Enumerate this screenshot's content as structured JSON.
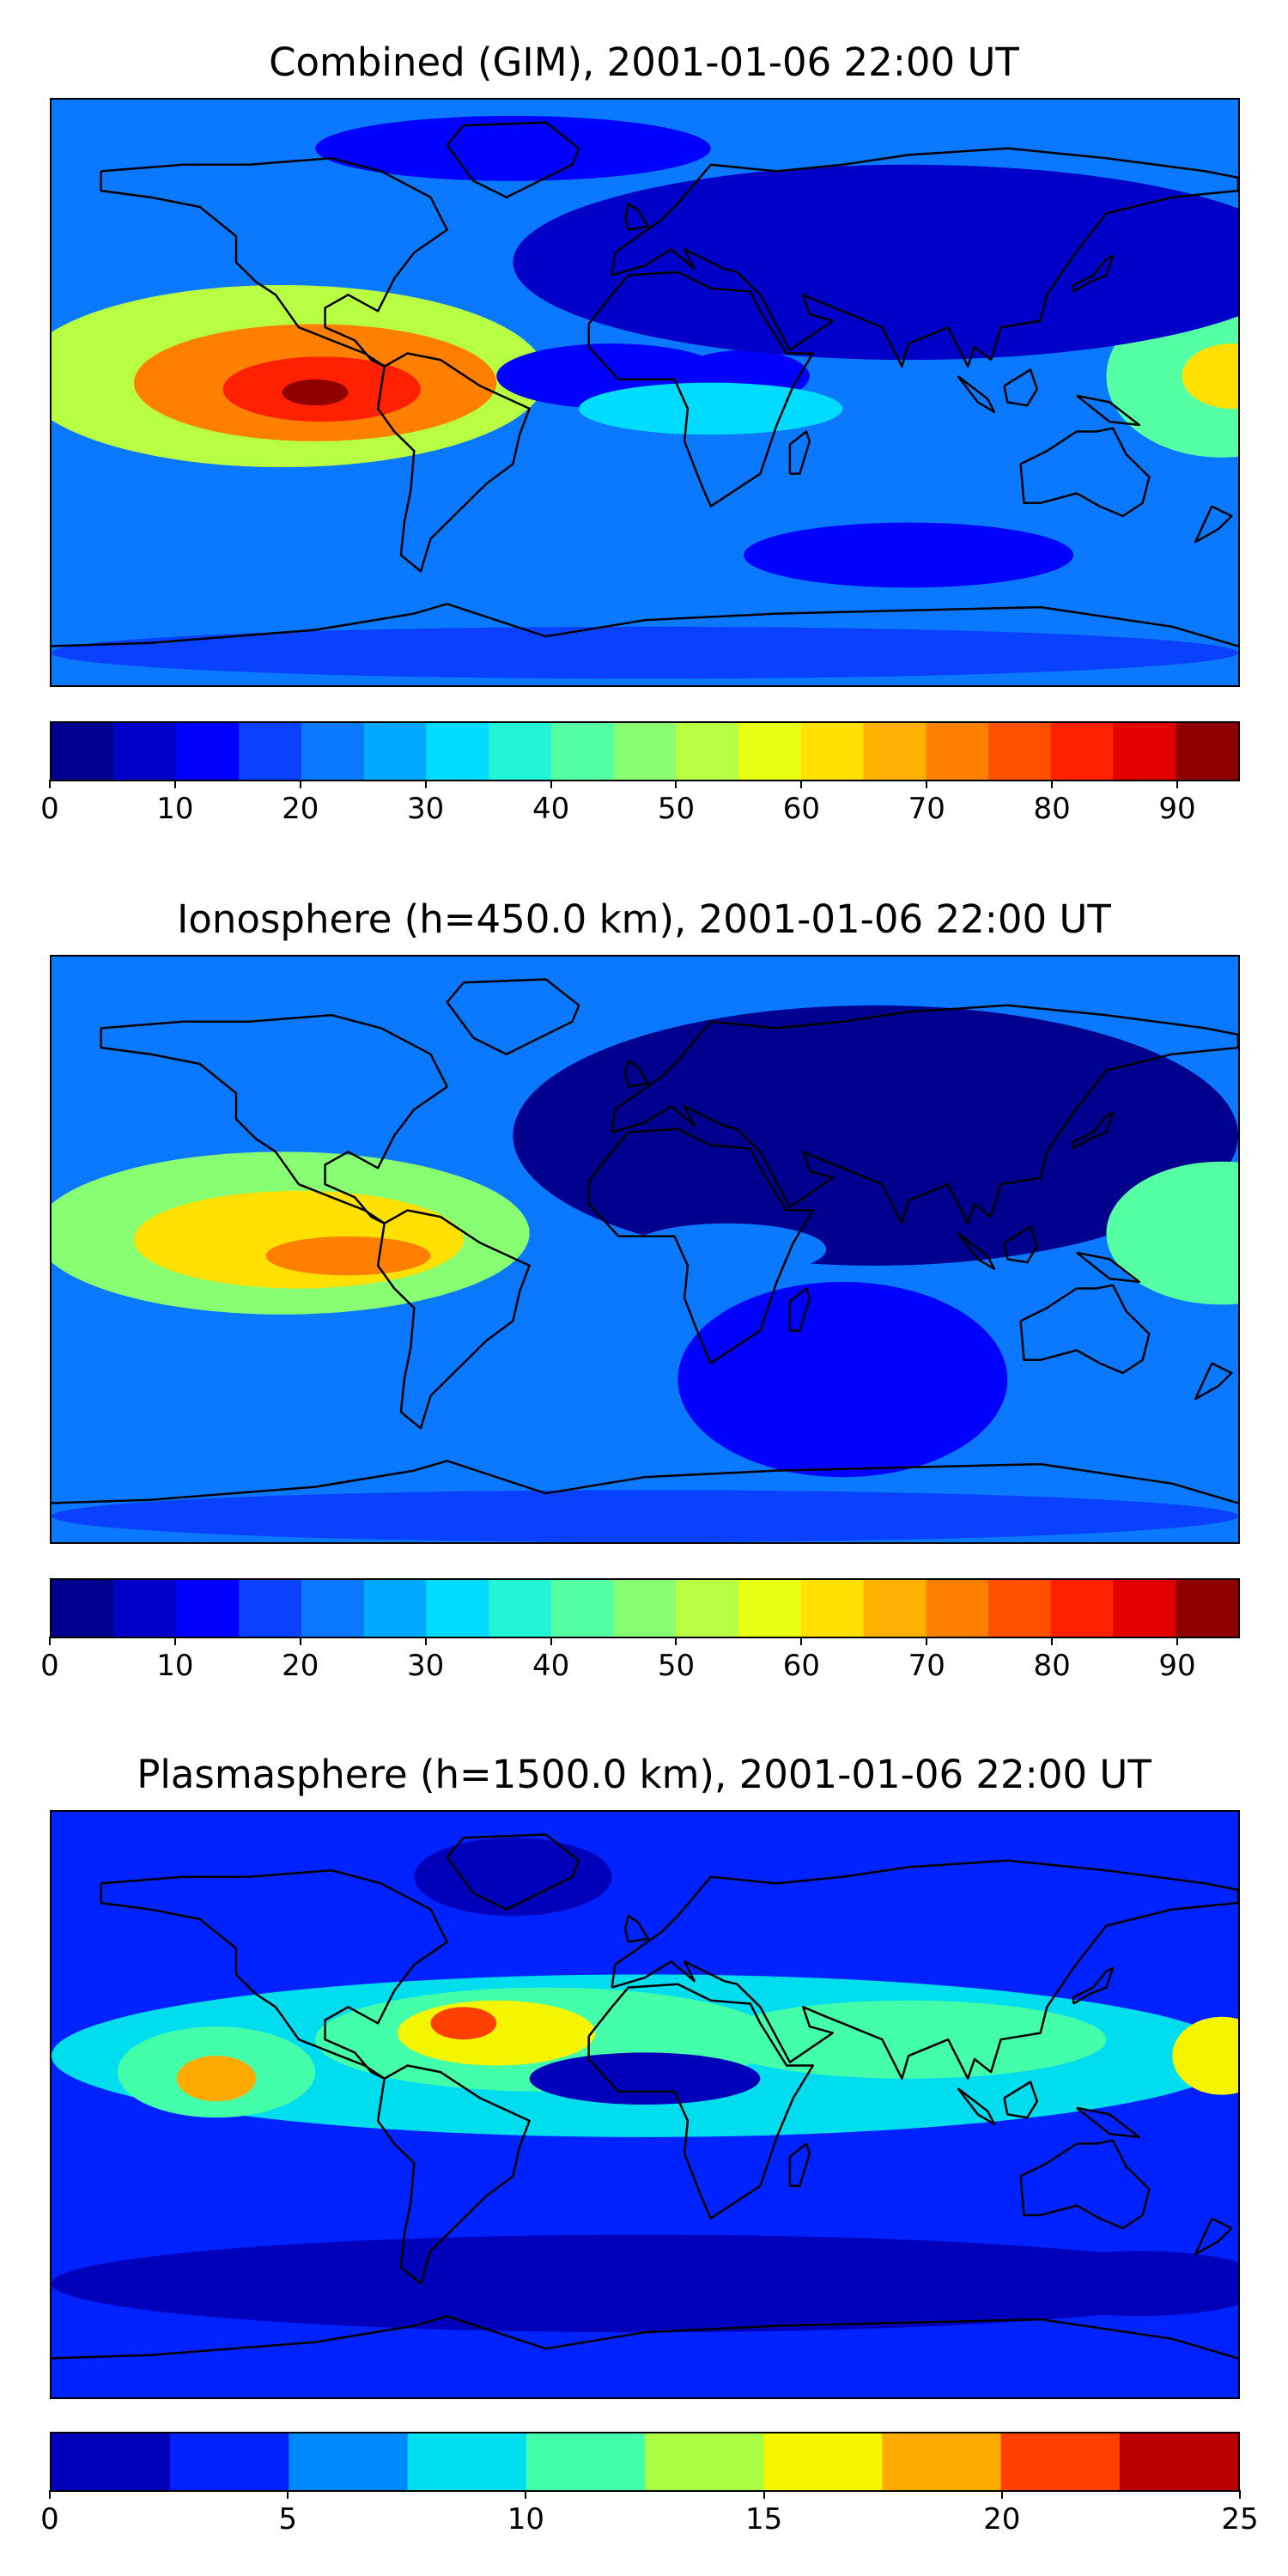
{
  "chart_data": [
    {
      "type": "heatmap",
      "title": "Combined (GIM), 2001-01-06 22:00 UT",
      "colorbar": {
        "levels": [
          0,
          5,
          10,
          15,
          20,
          25,
          30,
          35,
          40,
          45,
          50,
          55,
          60,
          65,
          70,
          75,
          80,
          85,
          90,
          95
        ],
        "ticks": [
          0,
          10,
          20,
          30,
          40,
          50,
          60,
          70,
          80,
          90
        ],
        "colors": [
          "#00008f",
          "#0000c8",
          "#0000ff",
          "#0a40ff",
          "#0a78ff",
          "#00aaff",
          "#00dcff",
          "#22f5d5",
          "#55ffa4",
          "#88ff73",
          "#b8ff44",
          "#e8ff13",
          "#ffe000",
          "#ffb000",
          "#ff8000",
          "#ff5000",
          "#ff2000",
          "#e00000",
          "#8f0000"
        ]
      },
      "background_level_index": 4,
      "features": [
        {
          "lon": -110,
          "lat": 5,
          "r_lon": 80,
          "r_lat": 28,
          "level": 10
        },
        {
          "lon": -100,
          "lat": 3,
          "r_lon": 55,
          "r_lat": 18,
          "level": 14
        },
        {
          "lon": -98,
          "lat": 1,
          "r_lon": 30,
          "r_lat": 10,
          "level": 16
        },
        {
          "lon": -100,
          "lat": 0,
          "r_lon": 10,
          "r_lat": 4,
          "level": 18
        },
        {
          "lon": 175,
          "lat": 5,
          "r_lon": 35,
          "r_lat": 25,
          "level": 8
        },
        {
          "lon": 178,
          "lat": 5,
          "r_lon": 15,
          "r_lat": 10,
          "level": 12
        },
        {
          "lon": -10,
          "lat": 5,
          "r_lon": 35,
          "r_lat": 10,
          "level": 2
        },
        {
          "lon": 30,
          "lat": 5,
          "r_lon": 20,
          "r_lat": 8,
          "level": 2
        },
        {
          "lon": 20,
          "lat": -5,
          "r_lon": 40,
          "r_lat": 8,
          "level": 6
        },
        {
          "lon": 80,
          "lat": 40,
          "r_lon": 120,
          "r_lat": 30,
          "level": 1
        },
        {
          "lon": 80,
          "lat": -50,
          "r_lon": 50,
          "r_lat": 10,
          "level": 2
        },
        {
          "lon": -40,
          "lat": 75,
          "r_lon": 60,
          "r_lat": 10,
          "level": 2
        },
        {
          "lon": 0,
          "lat": -80,
          "r_lon": 180,
          "r_lat": 8,
          "level": 3
        }
      ]
    },
    {
      "type": "heatmap",
      "title": "Ionosphere  (h=450.0 km), 2001-01-06 22:00 UT",
      "colorbar": {
        "levels": [
          0,
          5,
          10,
          15,
          20,
          25,
          30,
          35,
          40,
          45,
          50,
          55,
          60,
          65,
          70,
          75,
          80,
          85,
          90,
          95
        ],
        "ticks": [
          0,
          10,
          20,
          30,
          40,
          50,
          60,
          70,
          80,
          90
        ],
        "colors": [
          "#00008f",
          "#0000c8",
          "#0000ff",
          "#0a40ff",
          "#0a78ff",
          "#00aaff",
          "#00dcff",
          "#22f5d5",
          "#55ffa4",
          "#88ff73",
          "#b8ff44",
          "#e8ff13",
          "#ffe000",
          "#ffb000",
          "#ff8000",
          "#ff5000",
          "#ff2000",
          "#e00000",
          "#8f0000"
        ]
      },
      "background_level_index": 4,
      "features": [
        {
          "lon": 70,
          "lat": 35,
          "r_lon": 110,
          "r_lat": 40,
          "level": 0
        },
        {
          "lon": 60,
          "lat": -40,
          "r_lon": 50,
          "r_lat": 30,
          "level": 2
        },
        {
          "lon": -110,
          "lat": 5,
          "r_lon": 75,
          "r_lat": 25,
          "level": 9
        },
        {
          "lon": -105,
          "lat": 3,
          "r_lon": 50,
          "r_lat": 15,
          "level": 12
        },
        {
          "lon": -90,
          "lat": -2,
          "r_lon": 25,
          "r_lat": 6,
          "level": 14
        },
        {
          "lon": 175,
          "lat": 5,
          "r_lon": 35,
          "r_lat": 22,
          "level": 8
        },
        {
          "lon": 25,
          "lat": 0,
          "r_lon": 30,
          "r_lat": 8,
          "level": 4
        },
        {
          "lon": 0,
          "lat": -82,
          "r_lon": 180,
          "r_lat": 8,
          "level": 3
        }
      ]
    },
    {
      "type": "heatmap",
      "title": "Plasmasphere (h=1500.0 km), 2001-01-06 22:00 UT",
      "colorbar": {
        "levels": [
          0,
          2.5,
          5,
          7.5,
          10,
          12.5,
          15,
          17.5,
          20,
          22.5,
          25
        ],
        "ticks": [
          0,
          5,
          10,
          15,
          20,
          25
        ],
        "colors": [
          "#0000bb",
          "#0022ff",
          "#0088ff",
          "#00ddee",
          "#44ffaa",
          "#aaff44",
          "#f5f500",
          "#ffaa00",
          "#ff4000",
          "#bb0000"
        ]
      },
      "background_level_index": 1,
      "features": [
        {
          "lon": 0,
          "lat": 15,
          "r_lon": 180,
          "r_lat": 25,
          "level": 3
        },
        {
          "lon": -30,
          "lat": 20,
          "r_lon": 70,
          "r_lat": 16,
          "level": 4
        },
        {
          "lon": 80,
          "lat": 20,
          "r_lon": 60,
          "r_lat": 12,
          "level": 4
        },
        {
          "lon": -130,
          "lat": 10,
          "r_lon": 30,
          "r_lat": 14,
          "level": 4
        },
        {
          "lon": -45,
          "lat": 22,
          "r_lon": 30,
          "r_lat": 10,
          "level": 6
        },
        {
          "lon": -55,
          "lat": 25,
          "r_lon": 10,
          "r_lat": 5,
          "level": 8
        },
        {
          "lon": -130,
          "lat": 8,
          "r_lon": 12,
          "r_lat": 7,
          "level": 7
        },
        {
          "lon": 175,
          "lat": 15,
          "r_lon": 15,
          "r_lat": 12,
          "level": 6
        },
        {
          "lon": 0,
          "lat": 8,
          "r_lon": 35,
          "r_lat": 8,
          "level": 0
        },
        {
          "lon": 10,
          "lat": -15,
          "r_lon": 10,
          "r_lat": 5,
          "level": 1
        },
        {
          "lon": -40,
          "lat": 70,
          "r_lon": 30,
          "r_lat": 12,
          "level": 0
        },
        {
          "lon": 0,
          "lat": -55,
          "r_lon": 180,
          "r_lat": 15,
          "level": 0
        },
        {
          "lon": 150,
          "lat": -55,
          "r_lon": 40,
          "r_lat": 10,
          "level": 0
        }
      ]
    }
  ]
}
